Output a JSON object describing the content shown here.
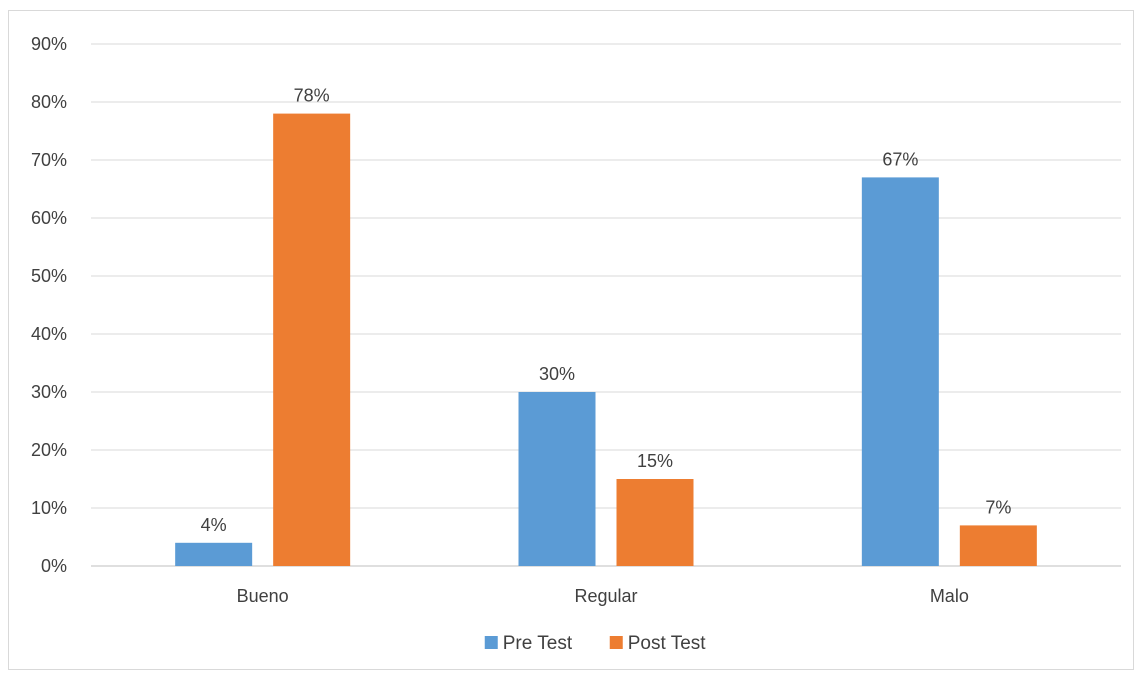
{
  "chart_data": {
    "type": "bar",
    "categories": [
      "Bueno",
      "Regular",
      "Malo"
    ],
    "series": [
      {
        "name": "Pre Test",
        "values": [
          4,
          30,
          67
        ],
        "color": "#5b9bd5"
      },
      {
        "name": "Post Test",
        "values": [
          78,
          15,
          7
        ],
        "color": "#ed7d31"
      }
    ],
    "data_labels": [
      [
        "4%",
        "30%",
        "67%"
      ],
      [
        "78%",
        "15%",
        "7%"
      ]
    ],
    "y_ticks": [
      "0%",
      "10%",
      "20%",
      "30%",
      "40%",
      "50%",
      "60%",
      "70%",
      "80%",
      "90%"
    ],
    "ylim": [
      0,
      90
    ],
    "grid": true,
    "legend_position": "bottom",
    "title": "",
    "xlabel": "",
    "ylabel": ""
  }
}
